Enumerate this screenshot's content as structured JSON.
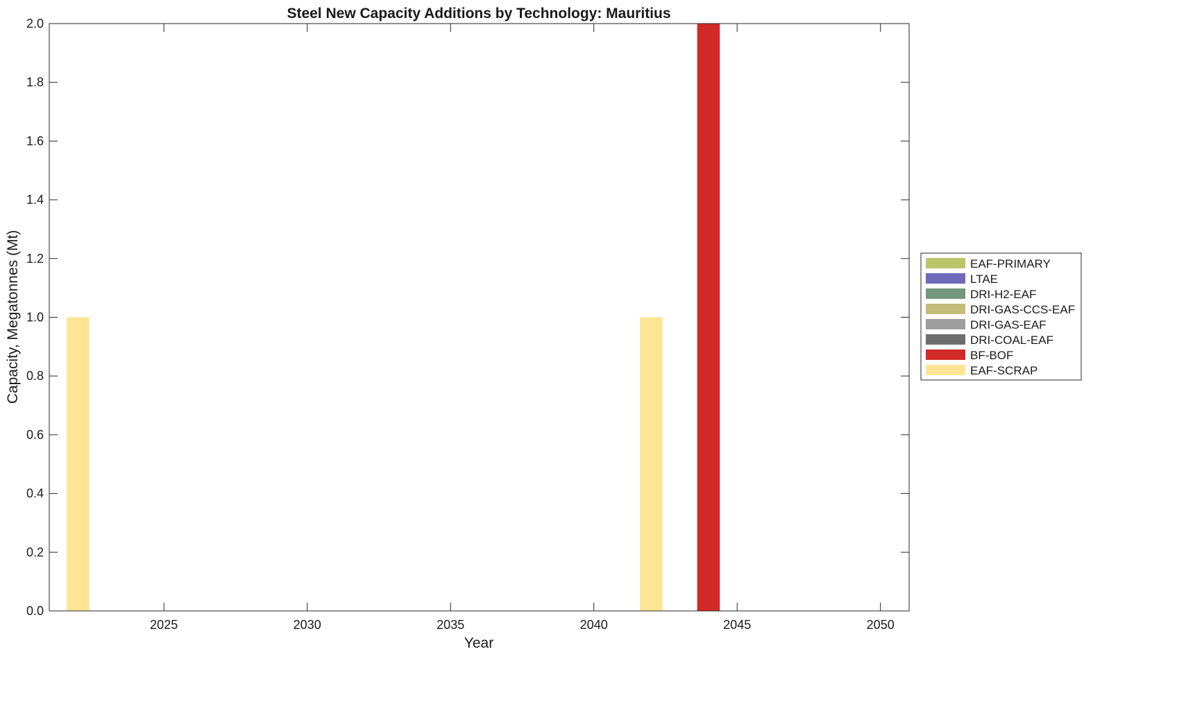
{
  "chart_data": {
    "type": "bar",
    "title": "Steel New Capacity Additions by Technology: Mauritius",
    "xlabel": "Year",
    "ylabel": "Capacity, Megatonnes (Mt)",
    "xlim": [
      2021,
      2051
    ],
    "ylim": [
      0,
      2
    ],
    "x_ticks": [
      "2025",
      "2030",
      "2035",
      "2040",
      "2045",
      "2050"
    ],
    "y_ticks": [
      "0.0",
      "0.2",
      "0.4",
      "0.6",
      "0.8",
      "1.0",
      "1.2",
      "1.4",
      "1.6",
      "1.8",
      "2.0"
    ],
    "grid": false,
    "legend_position": "outside-right",
    "series": [
      {
        "name": "EAF-PRIMARY",
        "color": "#bcc46a",
        "points": []
      },
      {
        "name": "LTAE",
        "color": "#7069b9",
        "points": []
      },
      {
        "name": "DRI-H2-EAF",
        "color": "#73977a",
        "points": []
      },
      {
        "name": "DRI-GAS-CCS-EAF",
        "color": "#c5bc7c",
        "points": []
      },
      {
        "name": "DRI-GAS-EAF",
        "color": "#9e9e9e",
        "points": []
      },
      {
        "name": "DRI-COAL-EAF",
        "color": "#6e6e6e",
        "points": []
      },
      {
        "name": "BF-BOF",
        "color": "#d22a26",
        "points": [
          {
            "x": 2044,
            "y": 2.0
          }
        ]
      },
      {
        "name": "EAF-SCRAP",
        "color": "#fee595",
        "points": [
          {
            "x": 2022,
            "y": 1.0
          },
          {
            "x": 2042,
            "y": 1.0
          }
        ]
      }
    ]
  }
}
